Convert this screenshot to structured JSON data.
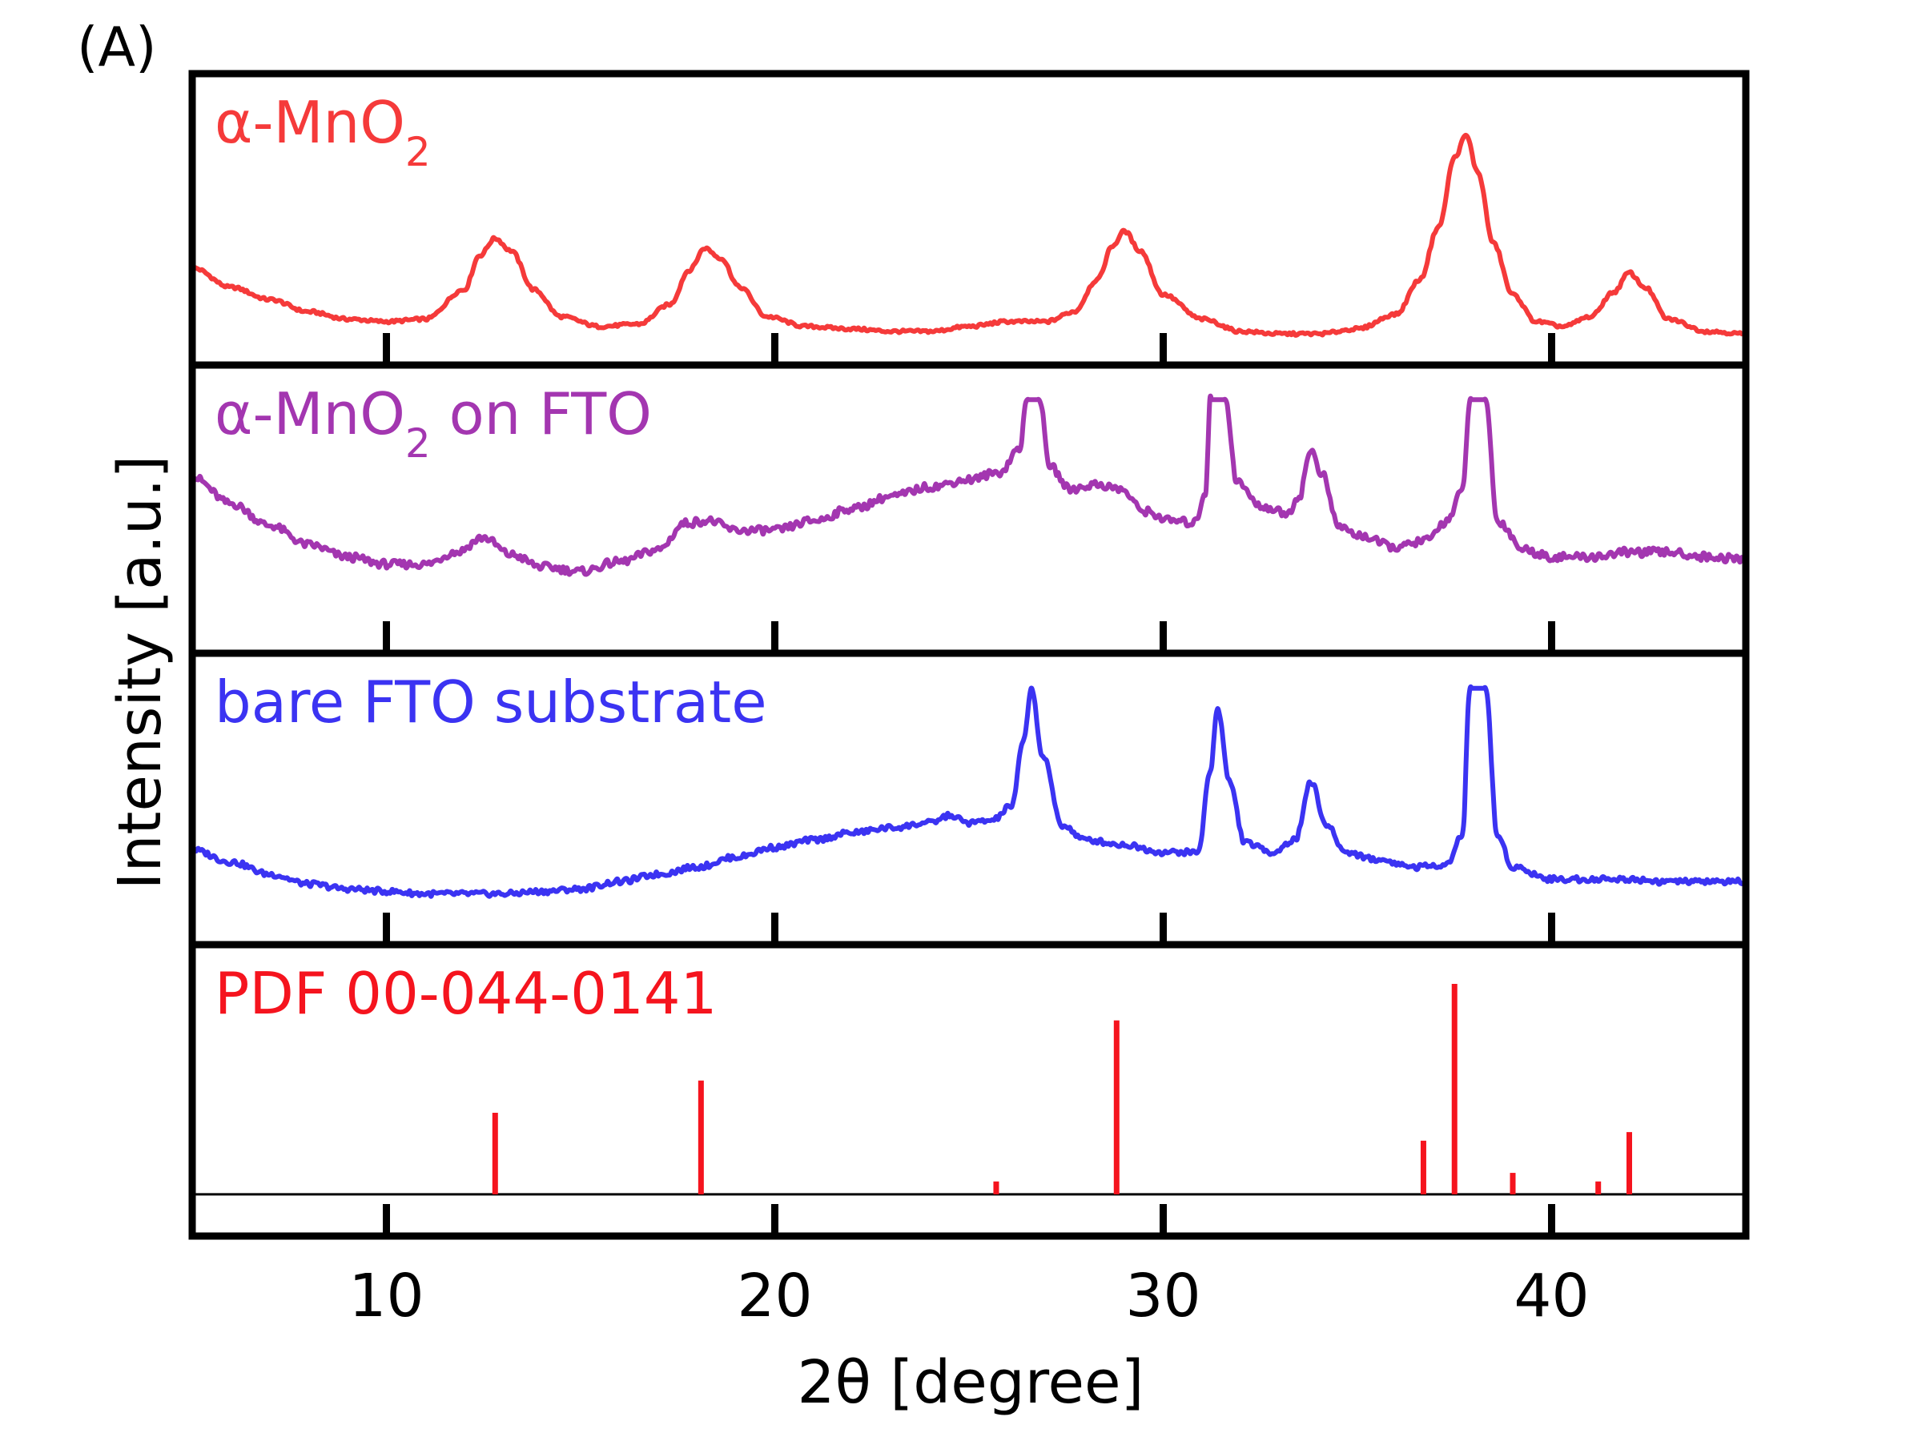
{
  "panel_label": "(A)",
  "colors": {
    "alpha_mno2": "#f53a3a",
    "on_fto": "#a336b0",
    "bare_fto": "#3b33f2",
    "pdf": "#f5141e",
    "axis": "#000000"
  },
  "chart_data": {
    "type": "line",
    "xlabel": "2θ [degree]",
    "ylabel": "Intensity [a.u.]",
    "xlim": [
      5,
      45
    ],
    "xticks": [
      10,
      20,
      30,
      40
    ],
    "grid": false,
    "subplots": [
      {
        "label": "α-MnO2",
        "type": "line",
        "ylim": [
          0,
          100
        ],
        "points": [
          [
            5,
            35
          ],
          [
            6,
            27
          ],
          [
            7,
            22
          ],
          [
            8,
            17
          ],
          [
            9,
            14
          ],
          [
            10,
            13
          ],
          [
            11,
            14
          ],
          [
            12,
            26
          ],
          [
            12.4,
            40
          ],
          [
            12.8,
            47
          ],
          [
            13.2,
            42
          ],
          [
            13.8,
            26
          ],
          [
            14.5,
            15
          ],
          [
            15.5,
            11
          ],
          [
            16.5,
            12
          ],
          [
            17.3,
            20
          ],
          [
            17.8,
            34
          ],
          [
            18.2,
            43
          ],
          [
            18.6,
            39
          ],
          [
            19.1,
            27
          ],
          [
            19.8,
            15
          ],
          [
            20.8,
            11
          ],
          [
            22,
            10
          ],
          [
            23,
            9
          ],
          [
            24,
            9
          ],
          [
            25,
            11
          ],
          [
            26,
            13
          ],
          [
            27,
            13
          ],
          [
            27.7,
            17
          ],
          [
            28.3,
            30
          ],
          [
            28.7,
            44
          ],
          [
            29.0,
            50
          ],
          [
            29.4,
            42
          ],
          [
            30,
            24
          ],
          [
            31,
            14
          ],
          [
            32,
            9
          ],
          [
            33,
            8
          ],
          [
            34,
            8
          ],
          [
            35,
            10
          ],
          [
            36,
            16
          ],
          [
            36.6,
            30
          ],
          [
            37.1,
            52
          ],
          [
            37.5,
            80
          ],
          [
            37.8,
            89
          ],
          [
            38.1,
            74
          ],
          [
            38.5,
            45
          ],
          [
            39,
            24
          ],
          [
            39.6,
            13
          ],
          [
            40.3,
            11
          ],
          [
            41,
            15
          ],
          [
            41.6,
            25
          ],
          [
            42,
            33
          ],
          [
            42.4,
            27
          ],
          [
            43,
            14
          ],
          [
            44,
            9
          ],
          [
            45,
            8
          ]
        ]
      },
      {
        "label": "α-MnO2 on FTO",
        "type": "line",
        "ylim": [
          0,
          100
        ],
        "points": [
          [
            5,
            68
          ],
          [
            6,
            57
          ],
          [
            7,
            48
          ],
          [
            8,
            40
          ],
          [
            9,
            35
          ],
          [
            10,
            32
          ],
          [
            11,
            32
          ],
          [
            11.8,
            37
          ],
          [
            12.5,
            43
          ],
          [
            13.2,
            36
          ],
          [
            14,
            31
          ],
          [
            15,
            29
          ],
          [
            16,
            33
          ],
          [
            17,
            38
          ],
          [
            17.7,
            49
          ],
          [
            18.3,
            50
          ],
          [
            19,
            46
          ],
          [
            20,
            46
          ],
          [
            21,
            50
          ],
          [
            22,
            55
          ],
          [
            23,
            60
          ],
          [
            24,
            64
          ],
          [
            25,
            67
          ],
          [
            25.8,
            70
          ],
          [
            26.3,
            80
          ],
          [
            26.5,
            100
          ],
          [
            26.8,
            100
          ],
          [
            27.1,
            72
          ],
          [
            27.6,
            63
          ],
          [
            28.3,
            65
          ],
          [
            28.9,
            63
          ],
          [
            29.5,
            54
          ],
          [
            30.2,
            50
          ],
          [
            30.8,
            49
          ],
          [
            31.1,
            62
          ],
          [
            31.2,
            100
          ],
          [
            31.6,
            100
          ],
          [
            31.9,
            66
          ],
          [
            32.5,
            56
          ],
          [
            33.2,
            53
          ],
          [
            33.5,
            60
          ],
          [
            33.8,
            79
          ],
          [
            34.1,
            69
          ],
          [
            34.5,
            48
          ],
          [
            35,
            44
          ],
          [
            36,
            39
          ],
          [
            36.8,
            42
          ],
          [
            37.3,
            50
          ],
          [
            37.7,
            62
          ],
          [
            37.9,
            100
          ],
          [
            38.3,
            100
          ],
          [
            38.6,
            50
          ],
          [
            39.3,
            38
          ],
          [
            40,
            35
          ],
          [
            41,
            35
          ],
          [
            42,
            37
          ],
          [
            43,
            37
          ],
          [
            44,
            35
          ],
          [
            45,
            34
          ]
        ]
      },
      {
        "label": "bare FTO substrate",
        "type": "line",
        "ylim": [
          0,
          100
        ],
        "points": [
          [
            5,
            34
          ],
          [
            6,
            29
          ],
          [
            7,
            24
          ],
          [
            8,
            20
          ],
          [
            9,
            18
          ],
          [
            10,
            17
          ],
          [
            11,
            16
          ],
          [
            12,
            16
          ],
          [
            13,
            16
          ],
          [
            14,
            17
          ],
          [
            15,
            18
          ],
          [
            16,
            21
          ],
          [
            17,
            24
          ],
          [
            18,
            27
          ],
          [
            19,
            31
          ],
          [
            20,
            35
          ],
          [
            21,
            38
          ],
          [
            22,
            41
          ],
          [
            23,
            43
          ],
          [
            24,
            45
          ],
          [
            24.5,
            48
          ],
          [
            25,
            45
          ],
          [
            25.6,
            46
          ],
          [
            26.1,
            52
          ],
          [
            26.4,
            78
          ],
          [
            26.6,
            100
          ],
          [
            26.9,
            72
          ],
          [
            27.4,
            44
          ],
          [
            28,
            38
          ],
          [
            29,
            36
          ],
          [
            30,
            33
          ],
          [
            30.9,
            33
          ],
          [
            31.2,
            65
          ],
          [
            31.4,
            92
          ],
          [
            31.7,
            62
          ],
          [
            32.1,
            37
          ],
          [
            32.8,
            33
          ],
          [
            33.4,
            38
          ],
          [
            33.8,
            62
          ],
          [
            34.2,
            44
          ],
          [
            34.7,
            33
          ],
          [
            35.5,
            30
          ],
          [
            36.5,
            27
          ],
          [
            37.3,
            28
          ],
          [
            37.7,
            40
          ],
          [
            37.9,
            100
          ],
          [
            38.3,
            100
          ],
          [
            38.6,
            40
          ],
          [
            39,
            27
          ],
          [
            40,
            22
          ],
          [
            41,
            22
          ],
          [
            42,
            22
          ],
          [
            43,
            21
          ],
          [
            44,
            21
          ],
          [
            45,
            21
          ]
        ]
      },
      {
        "label": "PDF 00-044-0141",
        "type": "bar",
        "ylim": [
          -14,
          100
        ],
        "sticks": [
          {
            "x": 12.8,
            "value": 38
          },
          {
            "x": 18.1,
            "value": 53
          },
          {
            "x": 25.7,
            "value": 6
          },
          {
            "x": 28.8,
            "value": 81
          },
          {
            "x": 36.7,
            "value": 25
          },
          {
            "x": 37.5,
            "value": 98
          },
          {
            "x": 39.0,
            "value": 10
          },
          {
            "x": 41.2,
            "value": 6
          },
          {
            "x": 42.0,
            "value": 29
          }
        ]
      }
    ]
  }
}
